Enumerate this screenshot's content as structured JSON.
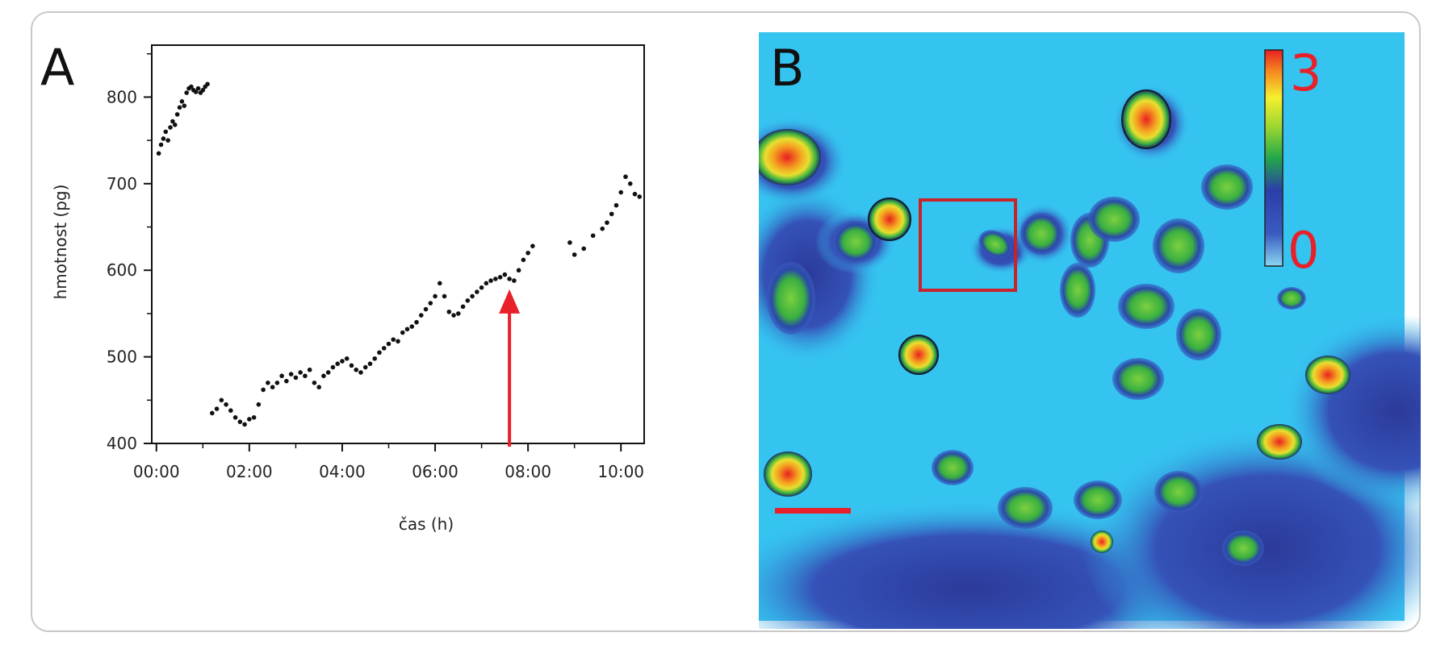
{
  "panel_a": {
    "letter": "A"
  },
  "panel_b": {
    "letter": "B",
    "colorbar_max": "3",
    "colorbar_min": "0"
  },
  "colors": {
    "points": "#111111",
    "arrow": "#e8202a",
    "background_b": "#35c3f0",
    "box": "#c8232a",
    "scalebar": "#e8202a"
  },
  "chart_data": {
    "type": "scatter",
    "xlabel": "čas (h)",
    "ylabel": "hmotnost (pg)",
    "x_unit": "hours",
    "xlim": [
      -0.1,
      10.5
    ],
    "ylim": [
      400,
      860
    ],
    "xticks": [
      0,
      2,
      4,
      6,
      8,
      10
    ],
    "xtick_labels": [
      "00:00",
      "02:00",
      "04:00",
      "06:00",
      "08:00",
      "10:00"
    ],
    "yticks": [
      400,
      500,
      600,
      700,
      800
    ],
    "ytick_labels": [
      "400",
      "500",
      "600",
      "700",
      "800"
    ],
    "series": [
      {
        "values": [
          [
            0.05,
            735
          ],
          [
            0.1,
            745
          ],
          [
            0.15,
            752
          ],
          [
            0.2,
            760
          ],
          [
            0.25,
            750
          ],
          [
            0.3,
            765
          ],
          [
            0.35,
            772
          ],
          [
            0.4,
            768
          ],
          [
            0.45,
            780
          ],
          [
            0.5,
            788
          ],
          [
            0.55,
            795
          ],
          [
            0.6,
            790
          ],
          [
            0.65,
            805
          ],
          [
            0.7,
            810
          ],
          [
            0.75,
            812
          ],
          [
            0.8,
            808
          ],
          [
            0.85,
            806
          ],
          [
            0.9,
            810
          ],
          [
            0.95,
            805
          ],
          [
            1.0,
            808
          ],
          [
            1.05,
            812
          ],
          [
            1.1,
            815
          ],
          [
            1.2,
            435
          ],
          [
            1.3,
            440
          ],
          [
            1.4,
            450
          ],
          [
            1.5,
            445
          ],
          [
            1.6,
            438
          ],
          [
            1.7,
            430
          ],
          [
            1.8,
            425
          ],
          [
            1.9,
            422
          ],
          [
            2.0,
            428
          ],
          [
            2.1,
            430
          ],
          [
            2.2,
            445
          ],
          [
            2.3,
            462
          ],
          [
            2.4,
            470
          ],
          [
            2.5,
            465
          ],
          [
            2.6,
            470
          ],
          [
            2.7,
            478
          ],
          [
            2.8,
            472
          ],
          [
            2.9,
            480
          ],
          [
            3.0,
            476
          ],
          [
            3.1,
            482
          ],
          [
            3.2,
            478
          ],
          [
            3.3,
            485
          ],
          [
            3.4,
            470
          ],
          [
            3.5,
            465
          ],
          [
            3.6,
            478
          ],
          [
            3.7,
            482
          ],
          [
            3.8,
            488
          ],
          [
            3.9,
            492
          ],
          [
            4.0,
            495
          ],
          [
            4.1,
            498
          ],
          [
            4.2,
            490
          ],
          [
            4.3,
            485
          ],
          [
            4.4,
            482
          ],
          [
            4.5,
            488
          ],
          [
            4.6,
            492
          ],
          [
            4.7,
            498
          ],
          [
            4.8,
            505
          ],
          [
            4.9,
            510
          ],
          [
            5.0,
            515
          ],
          [
            5.1,
            520
          ],
          [
            5.2,
            518
          ],
          [
            5.3,
            528
          ],
          [
            5.4,
            532
          ],
          [
            5.5,
            535
          ],
          [
            5.6,
            540
          ],
          [
            5.7,
            548
          ],
          [
            5.8,
            555
          ],
          [
            5.9,
            562
          ],
          [
            6.0,
            570
          ],
          [
            6.1,
            585
          ],
          [
            6.2,
            570
          ],
          [
            6.3,
            552
          ],
          [
            6.4,
            548
          ],
          [
            6.5,
            550
          ],
          [
            6.6,
            558
          ],
          [
            6.7,
            565
          ],
          [
            6.8,
            570
          ],
          [
            6.9,
            575
          ],
          [
            7.0,
            580
          ],
          [
            7.1,
            585
          ],
          [
            7.2,
            588
          ],
          [
            7.3,
            590
          ],
          [
            7.4,
            592
          ],
          [
            7.5,
            595
          ],
          [
            7.6,
            590
          ],
          [
            7.7,
            588
          ],
          [
            7.8,
            600
          ],
          [
            7.9,
            612
          ],
          [
            8.0,
            620
          ],
          [
            8.1,
            628
          ],
          [
            8.9,
            632
          ],
          [
            9.0,
            618
          ],
          [
            9.2,
            625
          ],
          [
            9.4,
            640
          ],
          [
            9.6,
            648
          ],
          [
            9.7,
            655
          ],
          [
            9.8,
            665
          ],
          [
            9.9,
            675
          ],
          [
            10.0,
            690
          ],
          [
            10.1,
            708
          ],
          [
            10.2,
            700
          ],
          [
            10.3,
            688
          ],
          [
            10.4,
            685
          ]
        ]
      }
    ],
    "annotations": [
      {
        "type": "arrow",
        "x": 7.6,
        "y_from": 400,
        "y_to": 578
      }
    ]
  }
}
